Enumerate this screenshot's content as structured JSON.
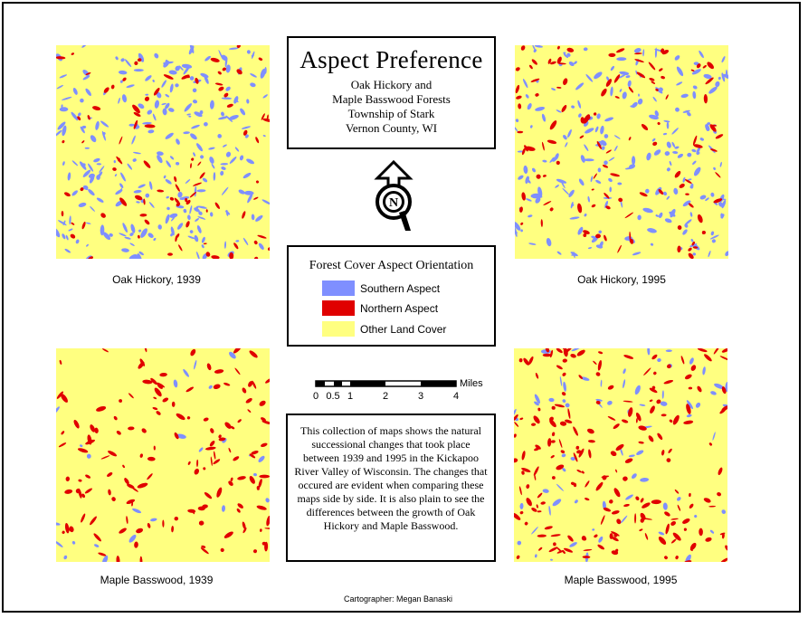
{
  "title": "Aspect Preference",
  "subtitle_lines": [
    "Oak Hickory and",
    "Maple Basswood Forests",
    "Township of Stark",
    "Vernon County, WI"
  ],
  "maps": [
    {
      "caption": "Oak Hickory, 1939"
    },
    {
      "caption": "Oak Hickory, 1995"
    },
    {
      "caption": "Maple Basswood, 1939"
    },
    {
      "caption": "Maple Basswood, 1995"
    }
  ],
  "legend": {
    "title": "Forest Cover Aspect Orientation",
    "items": [
      {
        "label": "Southern Aspect",
        "color": "#7f8fff"
      },
      {
        "label": "Northern Aspect",
        "color": "#e00000"
      },
      {
        "label": "Other Land Cover",
        "color": "#ffff80"
      }
    ]
  },
  "scale": {
    "unit": "Miles",
    "ticks": [
      "0",
      "0.5",
      "1",
      "2",
      "3",
      "4"
    ]
  },
  "north_label": "N",
  "description": "This collection of maps shows the natural successional changes that took place between 1939 and 1995 in the Kickapoo River Valley of Wisconsin. The changes that occured are evident when comparing these maps side by side. It is also plain to see the differences between the growth of Oak Hickory and Maple Basswood.",
  "credit": "Cartographer: Megan Banaski"
}
